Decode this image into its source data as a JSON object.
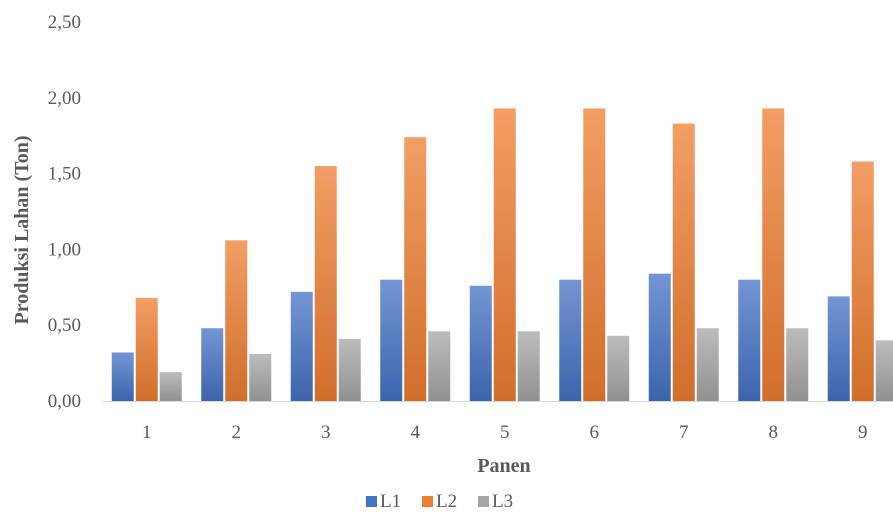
{
  "chart_data": {
    "type": "bar",
    "categories": [
      "1",
      "2",
      "3",
      "4",
      "5",
      "6",
      "7",
      "8",
      "9"
    ],
    "series": [
      {
        "name": "L1",
        "color": "#4472C4",
        "values": [
          0.32,
          0.48,
          0.72,
          0.8,
          0.76,
          0.8,
          0.84,
          0.8,
          0.69
        ]
      },
      {
        "name": "L2",
        "color": "#ED7D31",
        "values": [
          0.68,
          1.06,
          1.55,
          1.74,
          1.93,
          1.93,
          1.83,
          1.93,
          1.58
        ]
      },
      {
        "name": "L3",
        "color": "#A5A5A5",
        "values": [
          0.19,
          0.31,
          0.41,
          0.46,
          0.46,
          0.43,
          0.48,
          0.48,
          0.4
        ]
      }
    ],
    "xlabel": "Panen",
    "ylabel": "Produksi Lahan (Ton)",
    "ylim": [
      0,
      2.5
    ],
    "yticks": [
      "0,00",
      "0,50",
      "1,00",
      "1,50",
      "2,00",
      "2,50"
    ],
    "grid": false,
    "legend": "bottom"
  }
}
